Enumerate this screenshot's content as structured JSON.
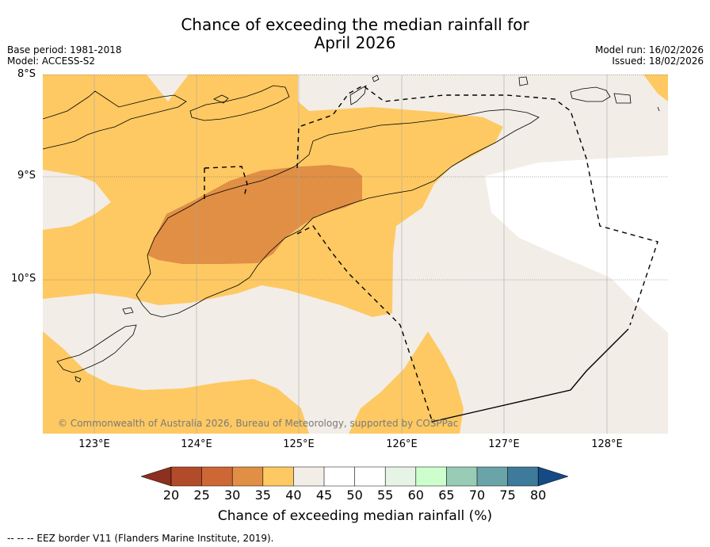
{
  "title": {
    "line1": "Chance of exceeding the median rainfall for",
    "line2": "April 2026"
  },
  "meta_left": {
    "base_period": "Base period: 1981-2018",
    "model": "Model: ACCESS-S2"
  },
  "meta_right": {
    "model_run": "Model run: 16/02/2026",
    "issued": "Issued: 18/02/2026"
  },
  "map": {
    "lat_labels": [
      "8°S",
      "9°S",
      "10°S"
    ],
    "lon_labels": [
      "123°E",
      "124°E",
      "125°E",
      "126°E",
      "127°E",
      "128°E"
    ],
    "copyright": "© Commonwealth of Australia 2026, Bureau of Meteorology, supported by COSPPac"
  },
  "colorbar": {
    "ticks": [
      "20",
      "25",
      "30",
      "35",
      "40",
      "45",
      "50",
      "55",
      "60",
      "65",
      "70",
      "75",
      "80"
    ],
    "label": "Chance of exceeding median rainfall (%)",
    "colors": {
      "below_20": "#8c3020",
      "c20_25": "#b24b2a",
      "c25_30": "#cd6836",
      "c30_35": "#e08f45",
      "c35_40": "#fec962",
      "c40_45": "#f2ede7",
      "c45_50": "#ffffff",
      "c50_55": "#ffffff",
      "c55_60": "#e6f4e6",
      "c60_65": "#ccffcc",
      "c65_70": "#99ccb6",
      "c70_75": "#6aa3a8",
      "c75_80": "#3e7a99",
      "above_80": "#154a84"
    }
  },
  "footer": "--  --  -- EEZ border V11 (Flanders Marine Institute, 2019)."
}
